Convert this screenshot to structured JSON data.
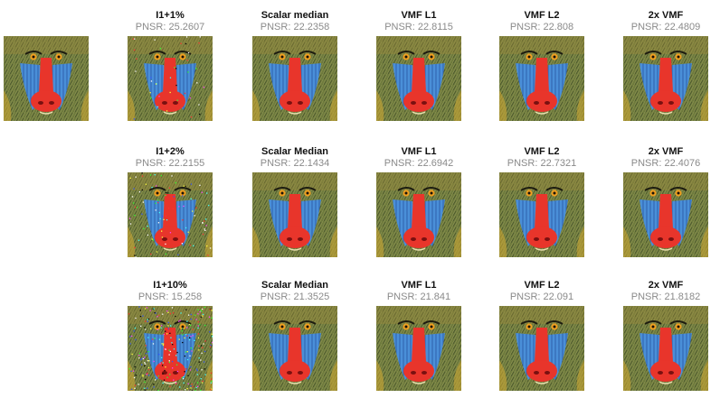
{
  "original_label": "",
  "rows": [
    {
      "panels": [
        {
          "title": "I1+1%",
          "psnr": "PNSR: 25.2607",
          "noise": "low"
        },
        {
          "title": "Scalar median",
          "psnr": "PNSR: 22.2358",
          "noise": "none"
        },
        {
          "title": "VMF L1",
          "psnr": "PNSR: 22.8115",
          "noise": "none"
        },
        {
          "title": "VMF L2",
          "psnr": "PNSR: 22.808",
          "noise": "none"
        },
        {
          "title": "2x VMF",
          "psnr": "PNSR: 22.4809",
          "noise": "none"
        }
      ]
    },
    {
      "panels": [
        {
          "title": "I1+2%",
          "psnr": "PNSR: 22.2155",
          "noise": "medium"
        },
        {
          "title": "Scalar Median",
          "psnr": "PNSR: 22.1434",
          "noise": "none"
        },
        {
          "title": "VMF L1",
          "psnr": "PNSR: 22.6942",
          "noise": "none"
        },
        {
          "title": "VMF L2",
          "psnr": "PNSR: 22.7321",
          "noise": "none"
        },
        {
          "title": "2x VMF",
          "psnr": "PNSR: 22.4076",
          "noise": "none"
        }
      ]
    },
    {
      "panels": [
        {
          "title": "I1+10%",
          "psnr": "PNSR: 15.258",
          "noise": "high"
        },
        {
          "title": "Scalar Median",
          "psnr": "PNSR: 21.3525",
          "noise": "none"
        },
        {
          "title": "VMF L1",
          "psnr": "PNSR: 21.841",
          "noise": "none"
        },
        {
          "title": "VMF L2",
          "psnr": "PNSR: 22.091",
          "noise": "none"
        },
        {
          "title": "2x VMF",
          "psnr": "PNSR: 21.8182",
          "noise": "none"
        }
      ]
    }
  ],
  "colors": {
    "title_text": "#111111",
    "psnr_text": "#8a8a8a",
    "nose": "#e8352b",
    "cheeks": "#4a8fd8",
    "fur": "#6d7a3c",
    "eyes": "#f0a020"
  }
}
